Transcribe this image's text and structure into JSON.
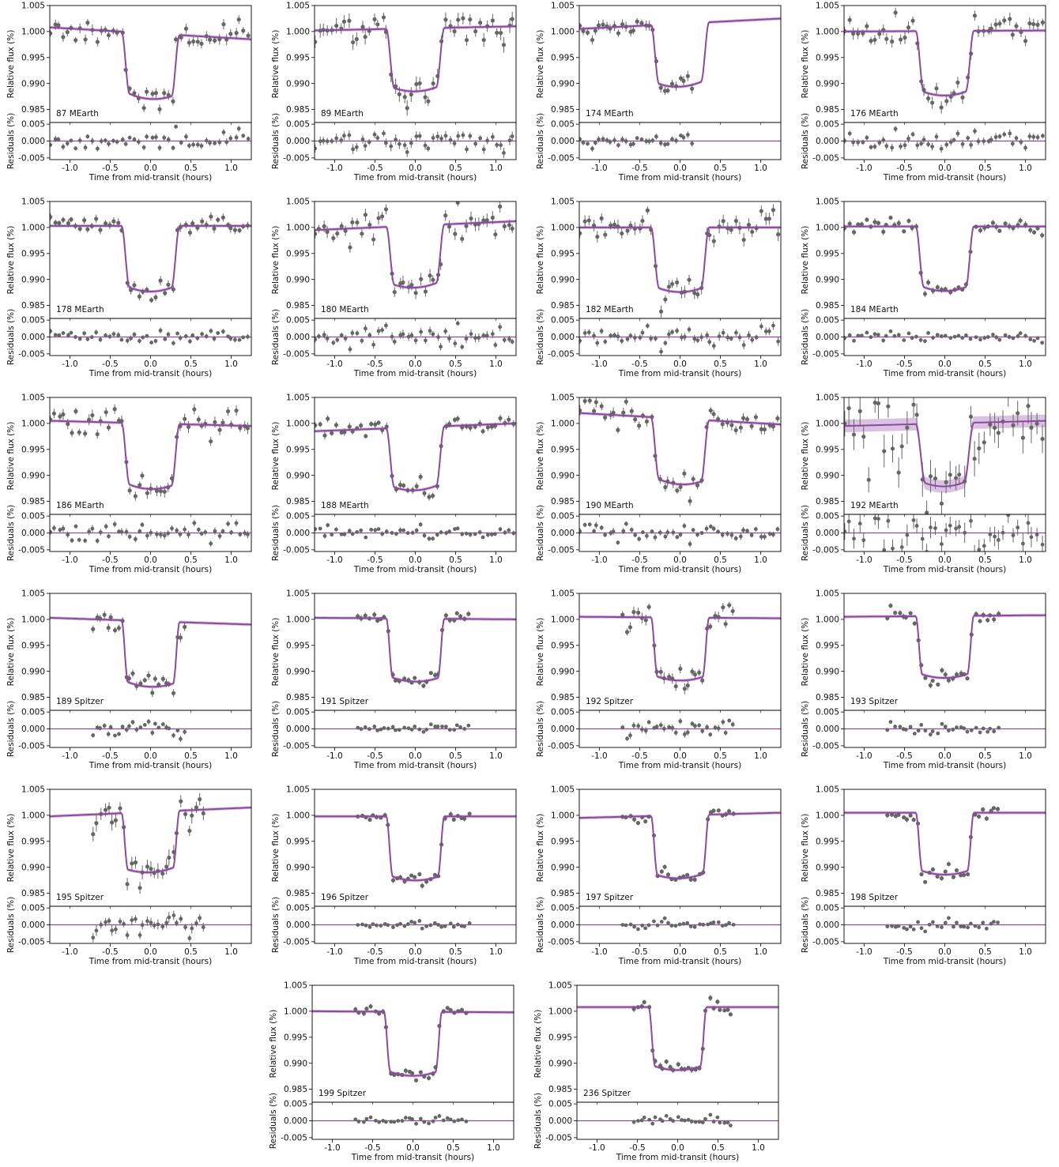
{
  "figure": {
    "ylabel_flux": "Relative flux (%)",
    "ylabel_resid": "Residuals (%)",
    "xlabel": "Time from mid-transit (hours)",
    "flux_ticks": [
      "0.985",
      "0.990",
      "0.995",
      "1.000",
      "1.005"
    ],
    "resid_ticks": [
      "-0.005",
      "0.000",
      "0.005"
    ],
    "x_ticks": [
      "-1.0",
      "-0.5",
      "0.0",
      "0.5",
      "1.0"
    ]
  },
  "colors": {
    "model": "#8B4A9C",
    "model_band": "#C9A8D6",
    "points": "#666666"
  },
  "chart_data": {
    "type": "scatter",
    "xlabel": "Time from mid-transit (hours)",
    "ylabel": "Relative flux (%)",
    "xlim": [
      -1.25,
      1.25
    ],
    "ylim_flux": [
      0.9825,
      1.005
    ],
    "ylim_resid": [
      -0.0055,
      0.0055
    ],
    "grid": false,
    "panels": [
      {
        "label": "87 MEarth",
        "instrument": "MEarth",
        "t0": 0.0,
        "half": 0.36,
        "ing": 0.1,
        "depth": 0.0125,
        "oot_left": 1.0008,
        "oot_right": 0.9985,
        "x_min": -1.25,
        "x_max": 1.25,
        "n": 48,
        "sigma": 0.0012,
        "seed": 11
      },
      {
        "label": "89 MEarth",
        "instrument": "MEarth",
        "t0": 0.0,
        "half": 0.36,
        "ing": 0.1,
        "depth": 0.012,
        "oot_left": 1.0002,
        "oot_right": 1.001,
        "x_min": -1.25,
        "x_max": 1.25,
        "n": 48,
        "sigma": 0.0017,
        "seed": 23
      },
      {
        "label": "174 MEarth",
        "instrument": "MEarth",
        "t0": 0.0,
        "half": 0.36,
        "ing": 0.1,
        "depth": 0.012,
        "oot_left": 1.0005,
        "oot_right": 1.0025,
        "x_min": -1.25,
        "x_max": 0.18,
        "n": 30,
        "sigma": 0.0011,
        "seed": 37
      },
      {
        "label": "176 MEarth",
        "instrument": "MEarth",
        "t0": 0.0,
        "half": 0.36,
        "ing": 0.1,
        "depth": 0.0123,
        "oot_left": 1.0,
        "oot_right": 1.0002,
        "x_min": -1.25,
        "x_max": 1.25,
        "n": 48,
        "sigma": 0.0014,
        "seed": 41
      },
      {
        "label": "178 MEarth",
        "instrument": "MEarth",
        "t0": 0.0,
        "half": 0.36,
        "ing": 0.1,
        "depth": 0.0125,
        "oot_left": 1.0003,
        "oot_right": 1.0003,
        "x_min": -1.25,
        "x_max": 1.25,
        "n": 48,
        "sigma": 0.001,
        "seed": 53
      },
      {
        "label": "180 MEarth",
        "instrument": "MEarth",
        "t0": 0.0,
        "half": 0.36,
        "ing": 0.1,
        "depth": 0.0118,
        "oot_left": 0.9995,
        "oot_right": 1.0012,
        "x_min": -1.25,
        "x_max": 1.25,
        "n": 48,
        "sigma": 0.0015,
        "seed": 67
      },
      {
        "label": "182 MEarth",
        "instrument": "MEarth",
        "t0": 0.0,
        "half": 0.36,
        "ing": 0.1,
        "depth": 0.0123,
        "oot_left": 1.0,
        "oot_right": 1.0,
        "x_min": -1.25,
        "x_max": 1.25,
        "n": 48,
        "sigma": 0.0015,
        "seed": 71
      },
      {
        "label": "184 MEarth",
        "instrument": "MEarth",
        "t0": 0.0,
        "half": 0.36,
        "ing": 0.1,
        "depth": 0.0123,
        "oot_left": 1.0002,
        "oot_right": 1.0002,
        "x_min": -1.25,
        "x_max": 1.25,
        "n": 48,
        "sigma": 0.0008,
        "seed": 83
      },
      {
        "label": "186 MEarth",
        "instrument": "MEarth",
        "t0": 0.0,
        "half": 0.36,
        "ing": 0.1,
        "depth": 0.0125,
        "oot_left": 1.0005,
        "oot_right": 0.9995,
        "x_min": -1.25,
        "x_max": 1.25,
        "n": 48,
        "sigma": 0.0013,
        "seed": 97
      },
      {
        "label": "188 MEarth",
        "instrument": "MEarth",
        "t0": 0.0,
        "half": 0.36,
        "ing": 0.1,
        "depth": 0.012,
        "oot_left": 0.9985,
        "oot_right": 1.0,
        "x_min": -1.25,
        "x_max": 1.25,
        "n": 48,
        "sigma": 0.0009,
        "seed": 101
      },
      {
        "label": "190 MEarth",
        "instrument": "MEarth",
        "t0": 0.0,
        "half": 0.36,
        "ing": 0.1,
        "depth": 0.0125,
        "oot_left": 1.002,
        "oot_right": 0.9998,
        "x_min": -1.25,
        "x_max": 1.25,
        "n": 48,
        "sigma": 0.0012,
        "seed": 113
      },
      {
        "label": "192 MEarth",
        "instrument": "MEarth",
        "t0": 0.0,
        "half": 0.36,
        "ing": 0.12,
        "depth": 0.012,
        "oot_left": 0.9995,
        "oot_right": 1.0005,
        "x_min": -1.25,
        "x_max": 1.25,
        "n": 42,
        "sigma": 0.0038,
        "seed": 127
      },
      {
        "label": "189 Spitzer",
        "instrument": "Spitzer",
        "t0": 0.0,
        "half": 0.36,
        "ing": 0.08,
        "depth": 0.0125,
        "oot_left": 1.0003,
        "oot_right": 0.999,
        "x_min": -0.72,
        "x_max": 0.45,
        "n": 26,
        "sigma": 0.001,
        "seed": 131
      },
      {
        "label": "191 Spitzer",
        "instrument": "Spitzer",
        "t0": 0.0,
        "half": 0.36,
        "ing": 0.08,
        "depth": 0.012,
        "oot_left": 1.0003,
        "oot_right": 1.0,
        "x_min": -0.72,
        "x_max": 0.7,
        "n": 30,
        "sigma": 0.0007,
        "seed": 139
      },
      {
        "label": "192 Spitzer",
        "instrument": "Spitzer",
        "t0": 0.0,
        "half": 0.36,
        "ing": 0.08,
        "depth": 0.012,
        "oot_left": 1.0005,
        "oot_right": 1.0002,
        "x_min": -0.72,
        "x_max": 0.7,
        "n": 30,
        "sigma": 0.0012,
        "seed": 149
      },
      {
        "label": "193 Spitzer",
        "instrument": "Spitzer",
        "t0": 0.0,
        "half": 0.36,
        "ing": 0.08,
        "depth": 0.0118,
        "oot_left": 1.0005,
        "oot_right": 1.0008,
        "x_min": -0.72,
        "x_max": 0.7,
        "n": 30,
        "sigma": 0.0007,
        "seed": 157
      },
      {
        "label": "195 Spitzer",
        "instrument": "Spitzer",
        "t0": 0.0,
        "half": 0.36,
        "ing": 0.08,
        "depth": 0.0115,
        "oot_left": 0.9998,
        "oot_right": 1.0015,
        "x_min": -0.72,
        "x_max": 0.7,
        "n": 30,
        "sigma": 0.0018,
        "seed": 163
      },
      {
        "label": "196 Spitzer",
        "instrument": "Spitzer",
        "t0": 0.0,
        "half": 0.36,
        "ing": 0.08,
        "depth": 0.0122,
        "oot_left": 0.9998,
        "oot_right": 0.9998,
        "x_min": -0.72,
        "x_max": 0.7,
        "n": 30,
        "sigma": 0.0006,
        "seed": 173
      },
      {
        "label": "197 Spitzer",
        "instrument": "Spitzer",
        "t0": 0.0,
        "half": 0.36,
        "ing": 0.08,
        "depth": 0.012,
        "oot_left": 0.9995,
        "oot_right": 1.0005,
        "x_min": -0.72,
        "x_max": 0.7,
        "n": 30,
        "sigma": 0.0006,
        "seed": 181
      },
      {
        "label": "198 Spitzer",
        "instrument": "Spitzer",
        "t0": 0.0,
        "half": 0.36,
        "ing": 0.08,
        "depth": 0.0118,
        "oot_left": 1.0005,
        "oot_right": 1.0005,
        "x_min": -0.72,
        "x_max": 0.7,
        "n": 30,
        "sigma": 0.0006,
        "seed": 191
      },
      {
        "label": "199 Spitzer",
        "instrument": "Spitzer",
        "t0": 0.0,
        "half": 0.36,
        "ing": 0.08,
        "depth": 0.0122,
        "oot_left": 1.0,
        "oot_right": 0.9998,
        "x_min": -0.72,
        "x_max": 0.7,
        "n": 30,
        "sigma": 0.0006,
        "seed": 193
      },
      {
        "label": "236 Spitzer",
        "instrument": "Spitzer",
        "t0": 0.0,
        "half": 0.36,
        "ing": 0.08,
        "depth": 0.012,
        "oot_left": 1.0008,
        "oot_right": 1.0008,
        "x_min": -0.55,
        "x_max": 0.7,
        "n": 28,
        "sigma": 0.0007,
        "seed": 197
      }
    ]
  }
}
